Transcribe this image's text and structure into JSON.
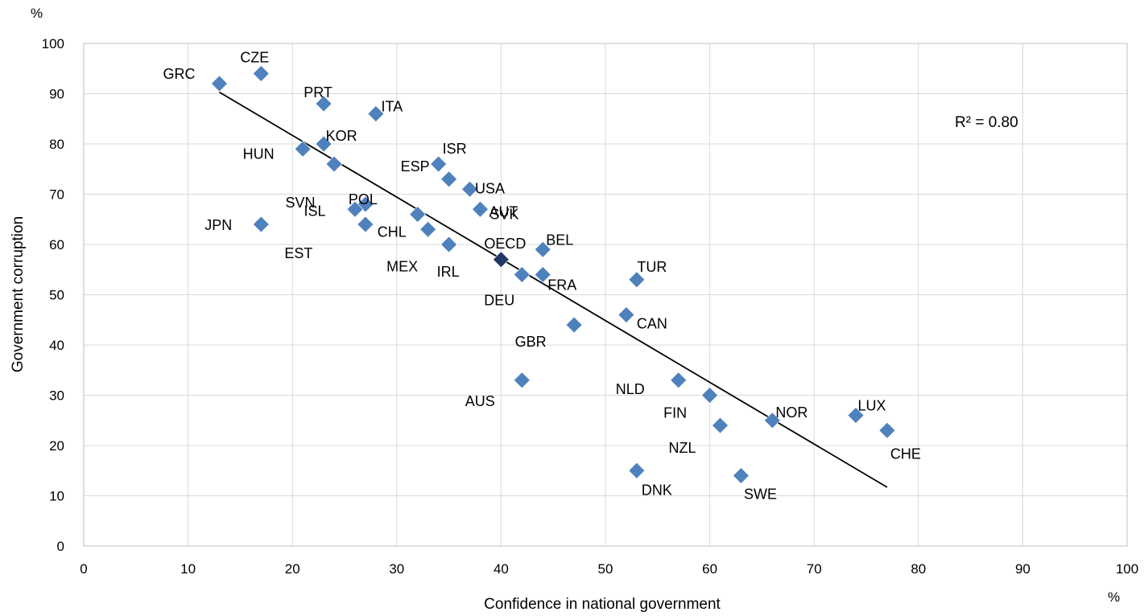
{
  "chart_data": {
    "type": "scatter",
    "xlabel": "Confidence in national government",
    "ylabel": "Government corruption",
    "x_unit": "%",
    "y_unit": "%",
    "xlim": [
      0,
      100
    ],
    "ylim": [
      0,
      100
    ],
    "xticks": [
      "0",
      "10",
      "20",
      "30",
      "40",
      "50",
      "60",
      "70",
      "80",
      "90",
      "100"
    ],
    "yticks": [
      "0",
      "10",
      "20",
      "30",
      "40",
      "50",
      "60",
      "70",
      "80",
      "90",
      "100"
    ],
    "grid": true,
    "series_color": "#4f81bd",
    "highlight_color": "#1f3864",
    "trendline": {
      "type": "linear",
      "r2_label": "R² = 0.80",
      "from": [
        13,
        90.3
      ],
      "to": [
        77,
        11.7
      ],
      "color": "#000000"
    },
    "points": [
      {
        "label": "GRC",
        "x": 13,
        "y": 92
      },
      {
        "label": "CZE",
        "x": 17,
        "y": 94
      },
      {
        "label": "PRT",
        "x": 23,
        "y": 88
      },
      {
        "label": "ITA",
        "x": 28,
        "y": 86
      },
      {
        "label": "KOR",
        "x": 23,
        "y": 80
      },
      {
        "label": "HUN",
        "x": 21,
        "y": 79
      },
      {
        "label": "SVN",
        "x": 24,
        "y": 76
      },
      {
        "label": "ESP",
        "x": 34,
        "y": 76
      },
      {
        "label": "ISR",
        "x": 35,
        "y": 73
      },
      {
        "label": "USA",
        "x": 37,
        "y": 71
      },
      {
        "label": "SVK",
        "x": 38,
        "y": 67
      },
      {
        "label": "AUT",
        "x": 38,
        "y": 67
      },
      {
        "label": "POL",
        "x": 27,
        "y": 68
      },
      {
        "label": "ISL",
        "x": 26,
        "y": 67
      },
      {
        "label": "JPN",
        "x": 17,
        "y": 64
      },
      {
        "label": "EST",
        "x": 27,
        "y": 64
      },
      {
        "label": "CHL",
        "x": 32,
        "y": 66
      },
      {
        "label": "MEX",
        "x": 33,
        "y": 63
      },
      {
        "label": "IRL",
        "x": 35,
        "y": 60
      },
      {
        "label": "OECD",
        "x": 40,
        "y": 57,
        "highlight": true
      },
      {
        "label": "BEL",
        "x": 44,
        "y": 59
      },
      {
        "label": "DEU",
        "x": 42,
        "y": 54
      },
      {
        "label": "FRA",
        "x": 44,
        "y": 54
      },
      {
        "label": "TUR",
        "x": 53,
        "y": 53
      },
      {
        "label": "CAN",
        "x": 52,
        "y": 46
      },
      {
        "label": "GBR",
        "x": 47,
        "y": 44
      },
      {
        "label": "AUS",
        "x": 42,
        "y": 33
      },
      {
        "label": "NLD",
        "x": 57,
        "y": 33
      },
      {
        "label": "FIN",
        "x": 60,
        "y": 30
      },
      {
        "label": "NZL",
        "x": 61,
        "y": 24
      },
      {
        "label": "NOR",
        "x": 66,
        "y": 25
      },
      {
        "label": "LUX",
        "x": 74,
        "y": 26
      },
      {
        "label": "CHE",
        "x": 77,
        "y": 23
      },
      {
        "label": "DNK",
        "x": 53,
        "y": 15
      },
      {
        "label": "SWE",
        "x": 63,
        "y": 14
      }
    ]
  }
}
